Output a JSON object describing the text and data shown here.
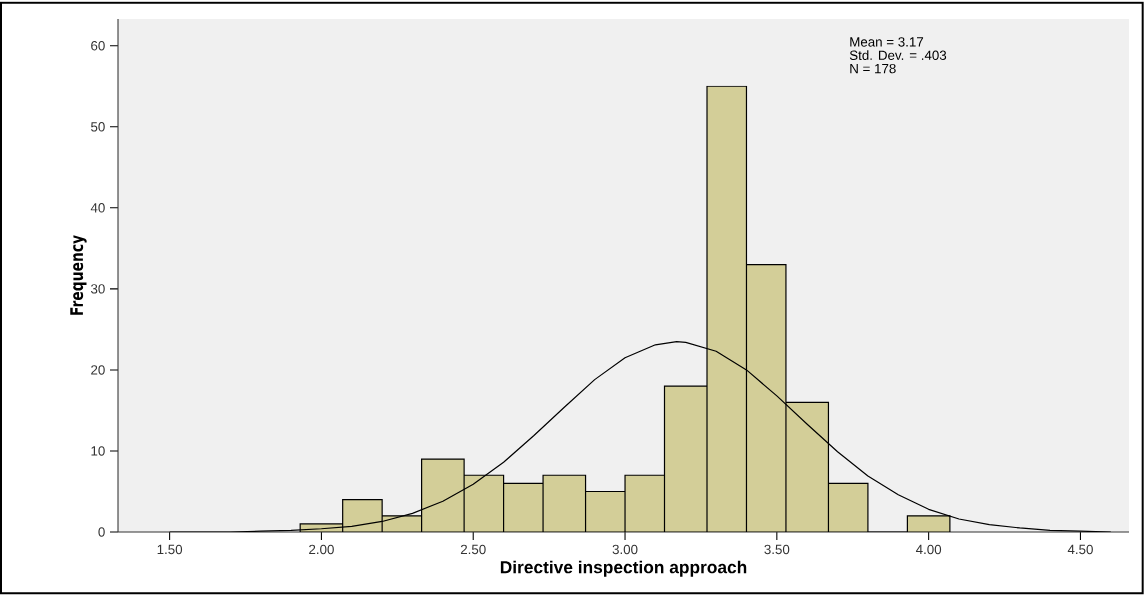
{
  "chart_data": {
    "type": "histogram",
    "xlabel": "Directive inspection approach",
    "ylabel": "Frequency",
    "bins": [
      1.93,
      2.07,
      2.2,
      2.33,
      2.47,
      2.6,
      2.73,
      2.87,
      3.0,
      3.13,
      3.27,
      3.4,
      3.53,
      3.67,
      3.8,
      3.93,
      4.07
    ],
    "values": [
      1,
      4,
      2,
      9,
      7,
      6,
      7,
      5,
      7,
      18,
      55,
      33,
      16,
      6,
      0,
      2
    ],
    "color": "#d3ce98",
    "series": [
      {
        "type": "line",
        "color": "#000000",
        "x": [
          1.5,
          1.6,
          1.7,
          1.8,
          1.9,
          2.0,
          2.1,
          2.2,
          2.3,
          2.4,
          2.5,
          2.6,
          2.7,
          2.8,
          2.9,
          3.0,
          3.1,
          3.17,
          3.2,
          3.3,
          3.4,
          3.5,
          3.6,
          3.7,
          3.8,
          3.9,
          4.0,
          4.1,
          4.2,
          4.3,
          4.4,
          4.5,
          4.6
        ],
        "values": [
          0.0,
          0.0,
          0.0,
          0.1,
          0.2,
          0.4,
          0.7,
          1.3,
          2.3,
          3.8,
          5.9,
          8.6,
          11.9,
          15.4,
          18.8,
          21.5,
          23.1,
          23.5,
          23.4,
          22.3,
          20.0,
          16.8,
          13.3,
          9.9,
          6.9,
          4.6,
          2.8,
          1.6,
          0.9,
          0.5,
          0.2,
          0.1,
          0.0
        ]
      }
    ],
    "xlim": [
      1.33,
      4.66
    ],
    "ylim": [
      0,
      63.3
    ],
    "xticks": [
      {
        "value": 1.5,
        "label": "1.50"
      },
      {
        "value": 2.0,
        "label": "2.00"
      },
      {
        "value": 2.5,
        "label": "2.50"
      },
      {
        "value": 3.0,
        "label": "3.00"
      },
      {
        "value": 3.5,
        "label": "3.50"
      },
      {
        "value": 4.0,
        "label": "4.00"
      },
      {
        "value": 4.5,
        "label": "4.50"
      }
    ],
    "yticks": [
      0,
      10,
      20,
      30,
      40,
      50,
      60
    ],
    "annotations": [
      "Mean = 3.17",
      "Std. Dev. = .403",
      "N = 178"
    ]
  }
}
